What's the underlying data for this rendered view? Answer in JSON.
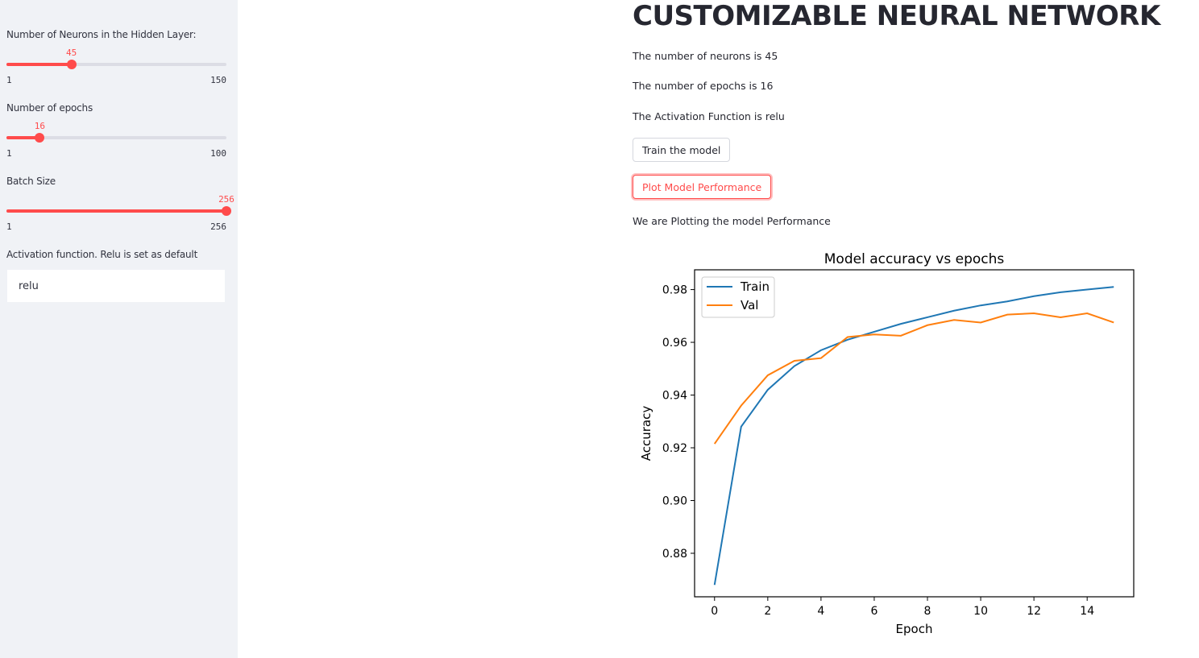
{
  "sidebar": {
    "neurons": {
      "label": "Number of Neurons in the Hidden Layer:",
      "value": 45,
      "min": 1,
      "max": 150
    },
    "epochs": {
      "label": "Number of epochs",
      "value": 16,
      "min": 1,
      "max": 100
    },
    "batch": {
      "label": "Batch Size",
      "value": 256,
      "min": 1,
      "max": 256
    },
    "activation": {
      "label": "Activation function. Relu is set as default",
      "value": "relu"
    }
  },
  "main": {
    "title": "CUSTOMIZABLE NEURAL NETWORK",
    "neurons_text": "The number of neurons is 45",
    "epochs_text": "The number of epochs is 16",
    "activation_text": "The Activation Function is relu",
    "train_button": "Train the model",
    "plot_button": "Plot Model Performance",
    "plotting_text": "We are Plotting the model Performance"
  },
  "colors": {
    "accent": "#ff4b4b",
    "train": "#1f77b4",
    "val": "#ff7f0e"
  },
  "chart_data": {
    "type": "line",
    "title": "Model accuracy vs epochs",
    "xlabel": "Epoch",
    "ylabel": "Accuracy",
    "x": [
      0,
      1,
      2,
      3,
      4,
      5,
      6,
      7,
      8,
      9,
      10,
      11,
      12,
      13,
      14,
      15
    ],
    "xticks": [
      0,
      2,
      4,
      6,
      8,
      10,
      12,
      14
    ],
    "yticks": [
      0.88,
      0.9,
      0.92,
      0.94,
      0.96,
      0.98
    ],
    "xlim": [
      -0.75,
      15.75
    ],
    "ylim": [
      0.8635,
      0.9875
    ],
    "legend": "top-left",
    "series": [
      {
        "name": "Train",
        "color": "#1f77b4",
        "values": [
          0.868,
          0.928,
          0.942,
          0.951,
          0.957,
          0.961,
          0.964,
          0.967,
          0.9695,
          0.972,
          0.974,
          0.9755,
          0.9775,
          0.979,
          0.98,
          0.981
        ]
      },
      {
        "name": "Val",
        "color": "#ff7f0e",
        "values": [
          0.9215,
          0.936,
          0.9475,
          0.953,
          0.954,
          0.962,
          0.963,
          0.9625,
          0.9665,
          0.9685,
          0.9675,
          0.9705,
          0.971,
          0.9695,
          0.971,
          0.9675
        ]
      }
    ]
  }
}
